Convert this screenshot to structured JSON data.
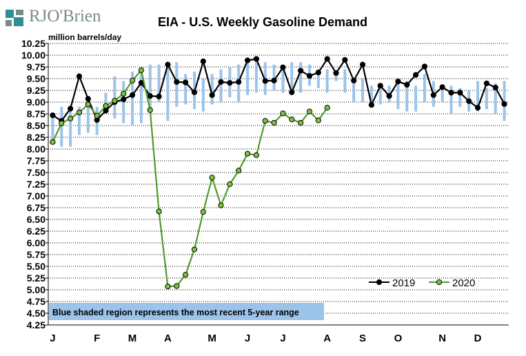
{
  "logo": {
    "text": "RJO'Brien"
  },
  "colors": {
    "range_bar": "#9cc3ea",
    "series_2019_line": "#000000",
    "series_2020_line": "#4e9a2a",
    "series_2020_marker": "#7fc241",
    "grid": "#000000",
    "logo_teal": "#2f8f95",
    "logo_gray": "#7a8a8a",
    "note_bg": "#9cc3ea"
  },
  "chart_data": {
    "type": "line",
    "title": "EIA - U.S. Weekly Gasoline Demand",
    "ylabel": "million barrels/day",
    "ylim": [
      4.25,
      10.25
    ],
    "ytick_step": 0.25,
    "y_tick_labels": [
      "4.25",
      "4.50",
      "4.75",
      "5.00",
      "5.25",
      "5.50",
      "5.75",
      "6.00",
      "6.25",
      "6.50",
      "6.75",
      "7.00",
      "7.25",
      "7.50",
      "7.75",
      "8.00",
      "8.25",
      "8.50",
      "8.75",
      "9.00",
      "9.25",
      "9.50",
      "9.75",
      "10.00",
      "10.25"
    ],
    "x_weeks": 52,
    "x_month_labels": [
      {
        "label": "J",
        "week": 1
      },
      {
        "label": "F",
        "week": 6
      },
      {
        "label": "M",
        "week": 10
      },
      {
        "label": "A",
        "week": 14
      },
      {
        "label": "M",
        "week": 19
      },
      {
        "label": "J",
        "week": 23
      },
      {
        "label": "J",
        "week": 27
      },
      {
        "label": "A",
        "week": 32
      },
      {
        "label": "S",
        "week": 36
      },
      {
        "label": "O",
        "week": 40
      },
      {
        "label": "N",
        "week": 45
      },
      {
        "label": "D",
        "week": 49
      }
    ],
    "grid": "horizontal-dotted",
    "legend_position": "bottom-right",
    "annotation": "Blue shaded region represents the most recent 5-year range",
    "five_year_range": [
      [
        8.15,
        8.7
      ],
      [
        8.05,
        8.9
      ],
      [
        8.05,
        8.9
      ],
      [
        8.3,
        8.9
      ],
      [
        8.35,
        9.0
      ],
      [
        8.3,
        8.9
      ],
      [
        8.75,
        9.2
      ],
      [
        8.65,
        9.55
      ],
      [
        8.55,
        9.45
      ],
      [
        8.5,
        9.65
      ],
      [
        8.55,
        9.7
      ],
      [
        8.85,
        9.8
      ],
      [
        9.0,
        9.8
      ],
      [
        8.6,
        9.85
      ],
      [
        8.9,
        9.85
      ],
      [
        8.95,
        9.6
      ],
      [
        8.85,
        9.65
      ],
      [
        8.8,
        9.5
      ],
      [
        8.95,
        9.6
      ],
      [
        9.0,
        9.7
      ],
      [
        9.1,
        9.75
      ],
      [
        9.0,
        9.8
      ],
      [
        9.15,
        9.85
      ],
      [
        9.2,
        9.95
      ],
      [
        9.15,
        9.85
      ],
      [
        9.25,
        9.8
      ],
      [
        9.2,
        9.8
      ],
      [
        9.25,
        9.85
      ],
      [
        9.2,
        9.85
      ],
      [
        9.35,
        9.8
      ],
      [
        9.3,
        9.7
      ],
      [
        9.2,
        9.7
      ],
      [
        9.45,
        9.65
      ],
      [
        9.2,
        9.7
      ],
      [
        9.0,
        9.5
      ],
      [
        9.0,
        9.5
      ],
      [
        8.9,
        9.35
      ],
      [
        8.95,
        9.3
      ],
      [
        9.0,
        9.35
      ],
      [
        8.85,
        9.4
      ],
      [
        8.8,
        9.45
      ],
      [
        8.8,
        9.35
      ],
      [
        9.0,
        9.6
      ],
      [
        8.9,
        9.45
      ],
      [
        9.0,
        9.3
      ],
      [
        8.75,
        9.35
      ],
      [
        8.9,
        9.3
      ],
      [
        8.8,
        9.25
      ],
      [
        8.8,
        9.45
      ],
      [
        8.85,
        9.3
      ],
      [
        8.75,
        9.4
      ],
      [
        8.6,
        9.45
      ]
    ],
    "series": [
      {
        "name": "2019",
        "values": [
          8.72,
          8.6,
          8.86,
          9.55,
          9.07,
          8.62,
          8.82,
          9.0,
          9.06,
          9.15,
          9.41,
          9.13,
          9.12,
          9.8,
          9.43,
          9.42,
          9.21,
          9.87,
          9.15,
          9.43,
          9.41,
          9.43,
          9.89,
          9.92,
          9.45,
          9.46,
          9.74,
          9.21,
          9.67,
          9.56,
          9.63,
          9.92,
          9.62,
          9.9,
          9.46,
          9.8,
          8.94,
          9.35,
          9.13,
          9.44,
          9.37,
          9.58,
          9.76,
          9.15,
          9.32,
          9.2,
          9.2,
          9.02,
          8.88,
          9.4,
          9.31,
          8.96
        ]
      },
      {
        "name": "2020",
        "values": [
          8.15,
          8.55,
          8.65,
          8.78,
          8.95,
          8.71,
          8.92,
          9.03,
          9.18,
          9.46,
          9.68,
          8.83,
          6.67,
          5.07,
          5.08,
          5.32,
          5.86,
          6.66,
          7.39,
          6.8,
          7.25,
          7.54,
          7.9,
          7.87,
          8.6,
          8.56,
          8.76,
          8.63,
          8.56,
          8.8,
          8.61,
          8.88
        ]
      }
    ]
  }
}
